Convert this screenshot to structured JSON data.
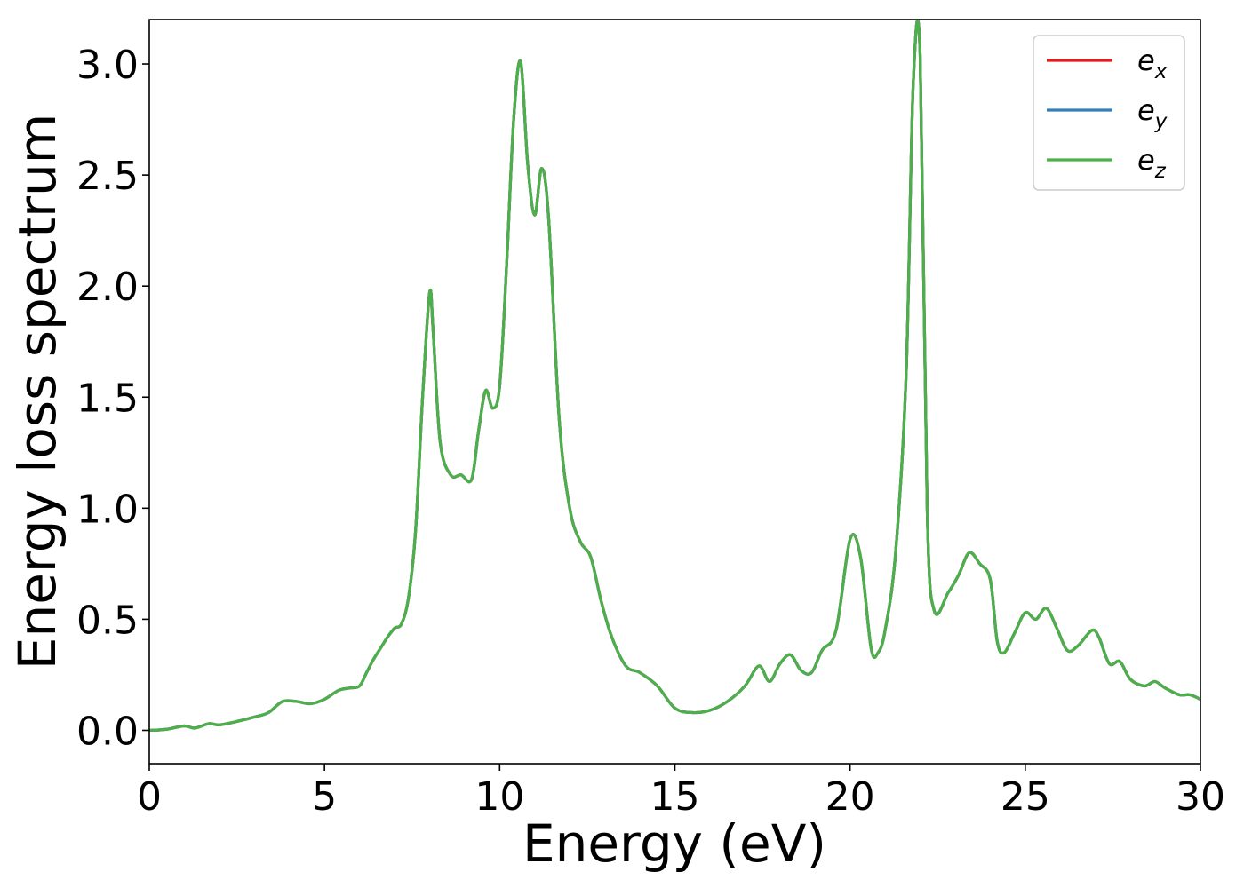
{
  "chart_data": {
    "type": "line",
    "title": "",
    "xlabel": "Energy (eV)",
    "ylabel": "Energy loss spectrum",
    "xlim": [
      0,
      30
    ],
    "ylim": [
      -0.15,
      3.2
    ],
    "xticks": [
      0,
      5,
      10,
      15,
      20,
      25,
      30
    ],
    "yticks": [
      0.0,
      0.5,
      1.0,
      1.5,
      2.0,
      2.5,
      3.0
    ],
    "xtick_labels": [
      "0",
      "5",
      "10",
      "15",
      "20",
      "25",
      "30"
    ],
    "ytick_labels": [
      "0.0",
      "0.5",
      "1.0",
      "1.5",
      "2.0",
      "2.5",
      "3.0"
    ],
    "grid": false,
    "legend_position": "top-right",
    "x": [
      0,
      0.5,
      1.0,
      1.3,
      1.7,
      2.0,
      2.5,
      3.0,
      3.4,
      3.8,
      4.2,
      4.6,
      5.0,
      5.4,
      5.7,
      6.0,
      6.2,
      6.4,
      6.6,
      6.8,
      7.0,
      7.2,
      7.4,
      7.6,
      7.8,
      8.0,
      8.1,
      8.3,
      8.6,
      8.9,
      9.2,
      9.4,
      9.6,
      9.8,
      10.0,
      10.2,
      10.4,
      10.6,
      10.8,
      11.0,
      11.2,
      11.4,
      11.7,
      12.0,
      12.3,
      12.6,
      12.9,
      13.2,
      13.6,
      14.0,
      14.5,
      15.0,
      15.5,
      16.0,
      16.5,
      17.0,
      17.4,
      17.7,
      18.0,
      18.3,
      18.6,
      18.9,
      19.2,
      19.6,
      20.0,
      20.3,
      20.6,
      20.8,
      21.0,
      21.3,
      21.6,
      21.8,
      22.0,
      22.2,
      22.4,
      22.8,
      23.1,
      23.4,
      23.7,
      24.0,
      24.2,
      24.4,
      24.7,
      25.0,
      25.3,
      25.6,
      25.9,
      26.2,
      26.5,
      26.9,
      27.1,
      27.4,
      27.7,
      28.0,
      28.4,
      28.7,
      29.0,
      29.4,
      29.7,
      30.0
    ],
    "series": [
      {
        "name": "e_x",
        "color": "#e41a1c",
        "values": [
          0.0,
          0.005,
          0.02,
          0.01,
          0.03,
          0.025,
          0.04,
          0.06,
          0.08,
          0.13,
          0.13,
          0.12,
          0.14,
          0.18,
          0.19,
          0.2,
          0.26,
          0.32,
          0.37,
          0.42,
          0.46,
          0.48,
          0.6,
          0.9,
          1.5,
          1.97,
          1.8,
          1.3,
          1.15,
          1.15,
          1.13,
          1.35,
          1.53,
          1.45,
          1.55,
          2.1,
          2.75,
          3.01,
          2.55,
          2.32,
          2.53,
          2.3,
          1.4,
          1.0,
          0.85,
          0.78,
          0.58,
          0.42,
          0.29,
          0.26,
          0.2,
          0.1,
          0.08,
          0.09,
          0.13,
          0.2,
          0.29,
          0.22,
          0.3,
          0.34,
          0.27,
          0.26,
          0.36,
          0.45,
          0.86,
          0.78,
          0.37,
          0.35,
          0.45,
          0.8,
          1.6,
          2.9,
          3.04,
          1.0,
          0.54,
          0.62,
          0.7,
          0.8,
          0.75,
          0.68,
          0.4,
          0.35,
          0.44,
          0.53,
          0.5,
          0.55,
          0.46,
          0.36,
          0.38,
          0.45,
          0.42,
          0.3,
          0.31,
          0.23,
          0.2,
          0.22,
          0.19,
          0.16,
          0.16,
          0.14
        ]
      },
      {
        "name": "e_y",
        "color": "#377eb8",
        "values": [
          0.0,
          0.005,
          0.02,
          0.01,
          0.03,
          0.025,
          0.04,
          0.06,
          0.08,
          0.13,
          0.13,
          0.12,
          0.14,
          0.18,
          0.19,
          0.2,
          0.26,
          0.32,
          0.37,
          0.42,
          0.46,
          0.48,
          0.6,
          0.9,
          1.5,
          1.97,
          1.8,
          1.3,
          1.15,
          1.15,
          1.13,
          1.35,
          1.53,
          1.45,
          1.55,
          2.1,
          2.75,
          3.01,
          2.55,
          2.32,
          2.53,
          2.3,
          1.4,
          1.0,
          0.85,
          0.78,
          0.58,
          0.42,
          0.29,
          0.26,
          0.2,
          0.1,
          0.08,
          0.09,
          0.13,
          0.2,
          0.29,
          0.22,
          0.3,
          0.34,
          0.27,
          0.26,
          0.36,
          0.45,
          0.86,
          0.78,
          0.37,
          0.35,
          0.45,
          0.8,
          1.6,
          2.9,
          3.04,
          1.0,
          0.54,
          0.62,
          0.7,
          0.8,
          0.75,
          0.68,
          0.4,
          0.35,
          0.44,
          0.53,
          0.5,
          0.55,
          0.46,
          0.36,
          0.38,
          0.45,
          0.42,
          0.3,
          0.31,
          0.23,
          0.2,
          0.22,
          0.19,
          0.16,
          0.16,
          0.14
        ]
      },
      {
        "name": "e_z",
        "color": "#4daf4a",
        "values": [
          0.0,
          0.005,
          0.02,
          0.01,
          0.03,
          0.025,
          0.04,
          0.06,
          0.08,
          0.13,
          0.13,
          0.12,
          0.14,
          0.18,
          0.19,
          0.2,
          0.26,
          0.32,
          0.37,
          0.42,
          0.46,
          0.48,
          0.6,
          0.9,
          1.5,
          1.97,
          1.8,
          1.3,
          1.15,
          1.15,
          1.13,
          1.35,
          1.53,
          1.45,
          1.55,
          2.1,
          2.75,
          3.01,
          2.55,
          2.32,
          2.53,
          2.3,
          1.4,
          1.0,
          0.85,
          0.78,
          0.58,
          0.42,
          0.29,
          0.26,
          0.2,
          0.1,
          0.08,
          0.09,
          0.13,
          0.2,
          0.29,
          0.22,
          0.3,
          0.34,
          0.27,
          0.26,
          0.36,
          0.45,
          0.86,
          0.78,
          0.37,
          0.35,
          0.45,
          0.8,
          1.6,
          2.9,
          3.04,
          1.0,
          0.54,
          0.62,
          0.7,
          0.8,
          0.75,
          0.68,
          0.4,
          0.35,
          0.44,
          0.53,
          0.5,
          0.55,
          0.46,
          0.36,
          0.38,
          0.45,
          0.42,
          0.3,
          0.31,
          0.23,
          0.2,
          0.22,
          0.19,
          0.16,
          0.16,
          0.14
        ]
      }
    ],
    "legend": [
      {
        "base": "e",
        "sub": "x"
      },
      {
        "base": "e",
        "sub": "y"
      },
      {
        "base": "e",
        "sub": "z"
      }
    ]
  }
}
